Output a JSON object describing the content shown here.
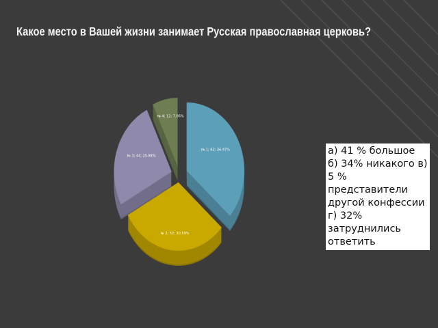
{
  "chart_data": {
    "type": "pie",
    "title": "Какое место в Вашей жизни занимает Русская православная церковь?",
    "categories": [
      "№ 1",
      "№ 2",
      "№ 3",
      "№ 4"
    ],
    "values": [
      62,
      52,
      44,
      12
    ],
    "value_labels": [
      "№ 1; 62; 36.47%",
      "№ 2; 52; 30.59%",
      "№ 3; 44; 25.88%",
      "№ 4; 12; 7.06%"
    ],
    "colors": [
      "#5c9fb9",
      "#c9a900",
      "#8f8aab",
      "#6e7d52"
    ],
    "annotation": "а) 41 % большое   б) 34% никакого в) 5 % представители другой конфессии  г) 32% затруднились ответить"
  }
}
